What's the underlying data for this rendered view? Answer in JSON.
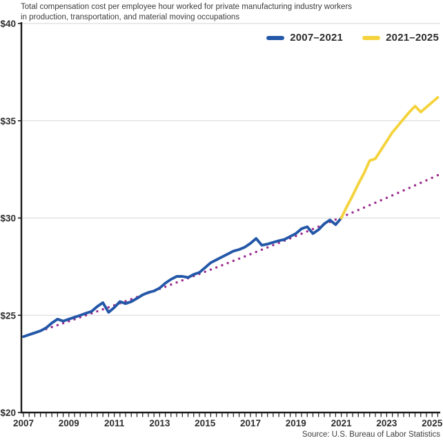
{
  "header": {
    "title_line1": "Total compensation cost per employee hour worked for private manufacturing industry workers",
    "title_line2": "in production, transportation, and material moving occupations"
  },
  "legend": [
    {
      "label": "2007–2021",
      "color": "#2357a7"
    },
    {
      "label": "2021–2025",
      "color": "#f5d33d"
    }
  ],
  "source": "Source: U.S. Bureau of Labor Statistics",
  "colors": {
    "series_blue": "#2357a7",
    "series_yellow": "#f5d33d",
    "trend_magenta": "#9c2b90",
    "gridline": "#d6d6d6",
    "axis": "#1a1a1a",
    "text_dark": "#2e2e2e"
  },
  "chart_data": {
    "type": "line",
    "title": "Total compensation cost per employee hour worked for private manufacturing industry workers in production, transportation, and material moving occupations",
    "xlabel": "",
    "ylabel": "",
    "xlim": [
      2007,
      2025.4
    ],
    "ylim": [
      20,
      40
    ],
    "grid": "horizontal",
    "legend_position": "top-right",
    "x_tick_years": [
      2007,
      2009,
      2011,
      2013,
      2015,
      2017,
      2019,
      2021,
      2023,
      2025
    ],
    "x_minor_tick_interval": 0.25,
    "y_ticks": [
      {
        "label": "$20",
        "value": 20
      },
      {
        "label": "$25",
        "value": 25
      },
      {
        "label": "$30",
        "value": 30
      },
      {
        "label": "$35",
        "value": 35
      },
      {
        "label": "$40",
        "value": 40
      }
    ],
    "series": [
      {
        "name": "2007–2021",
        "color": "#2357a7",
        "style": "solid",
        "points": [
          [
            2007.0,
            23.9
          ],
          [
            2007.25,
            24.0
          ],
          [
            2007.5,
            24.1
          ],
          [
            2007.75,
            24.2
          ],
          [
            2008.0,
            24.35
          ],
          [
            2008.25,
            24.6
          ],
          [
            2008.5,
            24.8
          ],
          [
            2008.75,
            24.7
          ],
          [
            2009.0,
            24.8
          ],
          [
            2009.25,
            24.9
          ],
          [
            2009.5,
            25.0
          ],
          [
            2009.75,
            25.1
          ],
          [
            2010.0,
            25.2
          ],
          [
            2010.25,
            25.45
          ],
          [
            2010.5,
            25.65
          ],
          [
            2010.75,
            25.15
          ],
          [
            2011.0,
            25.4
          ],
          [
            2011.25,
            25.7
          ],
          [
            2011.5,
            25.6
          ],
          [
            2011.75,
            25.7
          ],
          [
            2012.0,
            25.87
          ],
          [
            2012.25,
            26.05
          ],
          [
            2012.5,
            26.17
          ],
          [
            2012.75,
            26.25
          ],
          [
            2013.0,
            26.4
          ],
          [
            2013.25,
            26.65
          ],
          [
            2013.5,
            26.85
          ],
          [
            2013.75,
            27.0
          ],
          [
            2014.0,
            27.0
          ],
          [
            2014.25,
            26.94
          ],
          [
            2014.5,
            27.1
          ],
          [
            2014.75,
            27.2
          ],
          [
            2015.0,
            27.45
          ],
          [
            2015.25,
            27.7
          ],
          [
            2015.5,
            27.85
          ],
          [
            2015.75,
            28.0
          ],
          [
            2016.0,
            28.15
          ],
          [
            2016.25,
            28.3
          ],
          [
            2016.5,
            28.38
          ],
          [
            2016.75,
            28.5
          ],
          [
            2017.0,
            28.7
          ],
          [
            2017.25,
            28.95
          ],
          [
            2017.5,
            28.6
          ],
          [
            2017.75,
            28.66
          ],
          [
            2018.0,
            28.75
          ],
          [
            2018.25,
            28.83
          ],
          [
            2018.5,
            28.9
          ],
          [
            2018.75,
            29.05
          ],
          [
            2019.0,
            29.2
          ],
          [
            2019.25,
            29.45
          ],
          [
            2019.5,
            29.55
          ],
          [
            2019.75,
            29.2
          ],
          [
            2020.0,
            29.4
          ],
          [
            2020.25,
            29.7
          ],
          [
            2020.5,
            29.9
          ],
          [
            2020.75,
            29.66
          ],
          [
            2021.0,
            30.0
          ]
        ]
      },
      {
        "name": "2021–2025",
        "color": "#f5d33d",
        "style": "solid",
        "points": [
          [
            2021.0,
            30.0
          ],
          [
            2021.25,
            30.6
          ],
          [
            2021.5,
            31.15
          ],
          [
            2021.75,
            31.75
          ],
          [
            2022.0,
            32.3
          ],
          [
            2022.25,
            32.95
          ],
          [
            2022.5,
            33.05
          ],
          [
            2022.75,
            33.5
          ],
          [
            2023.0,
            33.95
          ],
          [
            2023.25,
            34.4
          ],
          [
            2023.5,
            34.75
          ],
          [
            2023.75,
            35.1
          ],
          [
            2024.0,
            35.45
          ],
          [
            2024.25,
            35.75
          ],
          [
            2024.5,
            35.45
          ],
          [
            2024.75,
            35.7
          ],
          [
            2025.0,
            35.95
          ],
          [
            2025.25,
            36.2
          ]
        ]
      },
      {
        "name": "pre-2021 trend extended",
        "color": "#9c2b90",
        "style": "dotted",
        "curve": "exponential",
        "interval": 0.25,
        "start": [
          2007.0,
          23.9
        ],
        "end": [
          2025.25,
          32.2
        ]
      }
    ]
  }
}
